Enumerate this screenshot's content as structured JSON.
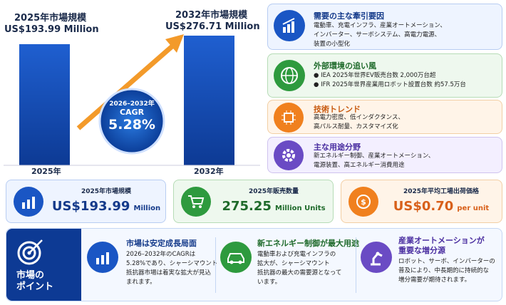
{
  "market": {
    "start": {
      "title": "2025年市場規模",
      "value": "US$193.99 Million",
      "year": "2025年"
    },
    "end": {
      "title": "2032年市場規模",
      "value": "US$276.71 Million",
      "year": "2032年"
    },
    "cagr": {
      "period": "2026–2032年",
      "label": "CAGR",
      "value": "5.28%"
    }
  },
  "drivers": [
    {
      "title": "需要の主な牽引要因",
      "lines": [
        "電動車、充電インフラ、産業オートメーション、",
        "インバーター、サーボシステム、高電力電源、",
        "装置の小型化"
      ]
    },
    {
      "title": "外部環境の追い風",
      "lines": [
        "IEA 2025年世界EV販売台数 2,000万台超",
        "IFR 2025年世界産業用ロボット設置台数 約57.5万台"
      ]
    },
    {
      "title": "技術トレンド",
      "lines": [
        "高電力密度、低インダクタンス、",
        "高パルス耐量、カスタマイズ化"
      ]
    },
    {
      "title": "主な用途分野",
      "lines": [
        "新エネルギー制御、産業オートメーション、",
        "電源装置、高エネルギー消費用途"
      ]
    }
  ],
  "stats": [
    {
      "title": "2025年市場規模",
      "value": "US$193.99",
      "unit": "Million"
    },
    {
      "title": "2025年販売数量",
      "value": "275.25",
      "unit": "Million Units"
    },
    {
      "title": "2025年平均工場出荷価格",
      "value": "US$0.70",
      "unit": "per unit"
    }
  ],
  "points": {
    "label": [
      "市場の",
      "ポイント"
    ],
    "items": [
      {
        "title": [
          "市場は安定成長局面"
        ],
        "lines": [
          "2026–2032年のCAGRは",
          "5.28%であり、シャーシマウント",
          "抵抗器市場は着実な拡大が見込",
          "まれます。"
        ]
      },
      {
        "title": [
          "新エネルギー制御が最大用途"
        ],
        "lines": [
          "電動車および充電インフラの",
          "拡大が、シャーシマウント",
          "抵抗器の最大の需要源となって",
          "います。"
        ]
      },
      {
        "title": [
          "産業オートメーションが",
          "重要な増分源"
        ],
        "lines": [
          "ロボット、サーボ、インバーターの",
          "普及により、中長期的に持続的な",
          "増分需要が期待されます。"
        ]
      }
    ]
  }
}
